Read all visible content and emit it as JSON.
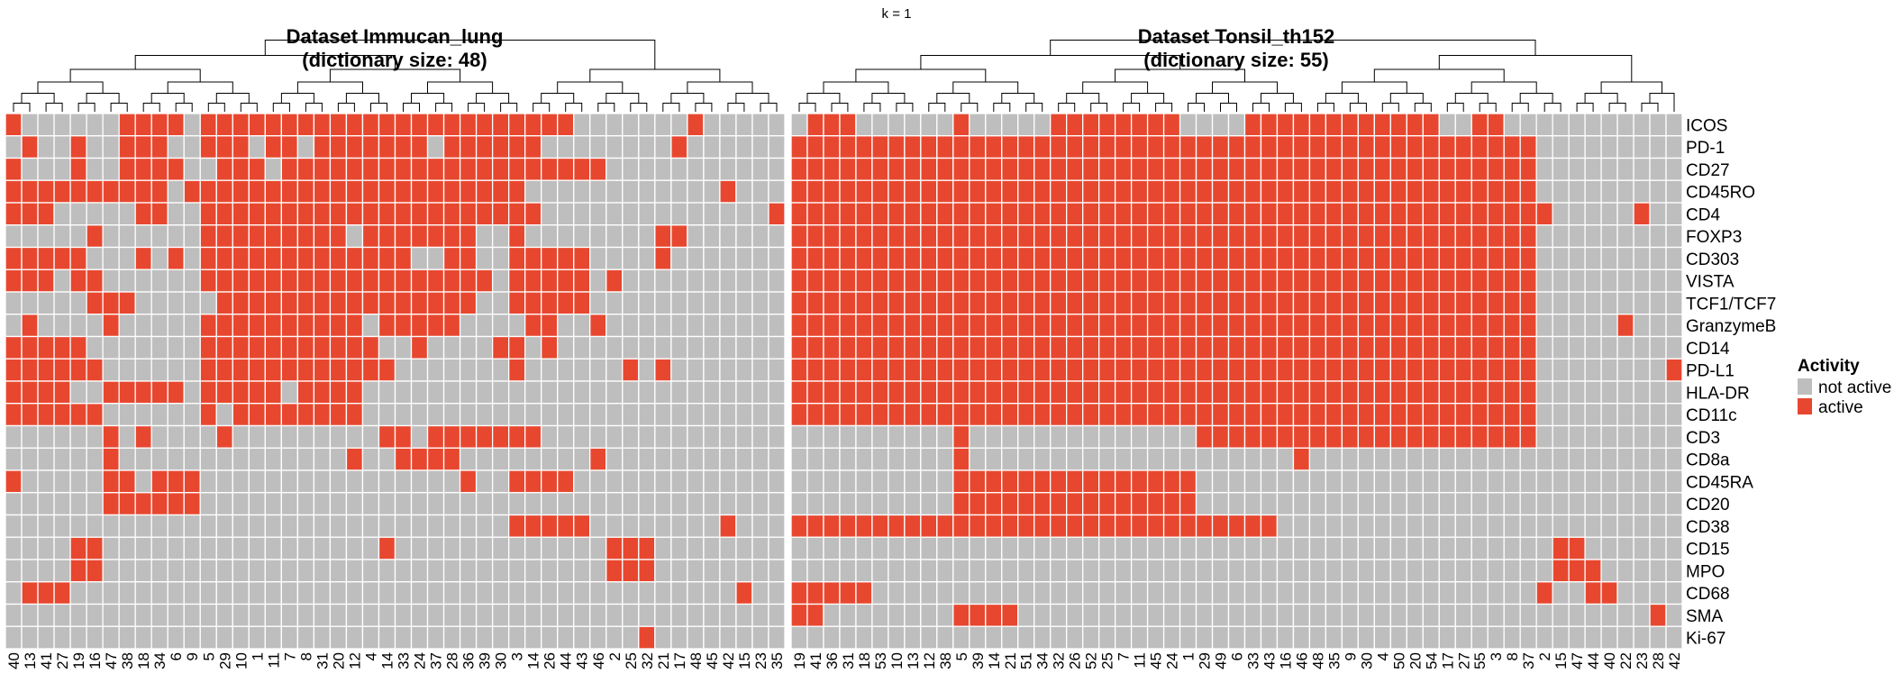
{
  "chart_data": {
    "type": "heatmap",
    "title": "k = 1",
    "colors": {
      "not_active": "#BEBEBE",
      "active": "#E8472F",
      "grid": "#FFFFFF"
    },
    "legend": {
      "title": "Activity",
      "placement": "right",
      "entries": [
        {
          "label": "not active",
          "color": "#BEBEBE"
        },
        {
          "label": "active",
          "color": "#E8472F"
        }
      ]
    },
    "rows": [
      "ICOS",
      "PD-1",
      "CD27",
      "CD45RO",
      "CD4",
      "FOXP3",
      "CD303",
      "VISTA",
      "TCF1/TCF7",
      "GranzymeB",
      "CD14",
      "PD-L1",
      "HLA-DR",
      "CD11c",
      "CD3",
      "CD8a",
      "CD45RA",
      "CD20",
      "CD38",
      "CD15",
      "MPO",
      "CD68",
      "SMA",
      "Ki-67"
    ],
    "panels": [
      {
        "title_line1": "Dataset Immucan_lung",
        "title_line2": "(dictionary size: 48)",
        "columns": [
          "40",
          "13",
          "41",
          "27",
          "19",
          "16",
          "47",
          "38",
          "18",
          "34",
          "6",
          "9",
          "5",
          "29",
          "10",
          "1",
          "11",
          "7",
          "8",
          "31",
          "20",
          "12",
          "4",
          "14",
          "33",
          "24",
          "37",
          "28",
          "36",
          "39",
          "30",
          "3",
          "14",
          "26",
          "44",
          "43",
          "46",
          "2",
          "25",
          "32",
          "21",
          "17",
          "48",
          "45",
          "42",
          "15",
          "23",
          "35"
        ],
        "matrix": [
          "100000011110111111111111111111111110000000100000",
          "010010011100111011011111110111111000000001000000",
          "100010011110011101111111111111111111100000000000",
          "111111111101111111111111111111110000000000001000",
          "111000001100111111111111111111111000000000000001",
          "000001000000111111111011111110010000000011000000",
          "111110001010111111111111100110011111000010000000",
          "111011000000111111111111111111011111010000000000",
          "000001110000011111111111111110011111000000000000",
          "010000100000111111111101111100001100100000000000",
          "111110000000111111111110010000110100000000000000",
          "111111000000111111111111000000010000001010000000",
          "111100111110111110111100000000000000000000000000",
          "111111000000101111111100000000000000000000000000",
          "000000101000010000000001101111111000000000000000",
          "000000100000000000000100111100000000100000000000",
          "100000110111000000000000000010011110000000000000",
          "000000111111000000000000000000000000000000000000",
          "000000000000000000000000000000011111000000001000",
          "000011000000000000000001000000000000011100000000",
          "000011000000000000000000000000000000011100000000",
          "011100000000000000000000000000000000000000000100",
          "000000000000000000000000000000000000000000000000",
          "000000000000000000000000000000000000000100000000"
        ]
      },
      {
        "title_line1": "Dataset Tonsil_th152",
        "title_line2": "(dictionary size: 55)",
        "columns": [
          "19",
          "41",
          "36",
          "31",
          "18",
          "53",
          "10",
          "13",
          "12",
          "38",
          "5",
          "39",
          "14",
          "21",
          "51",
          "34",
          "32",
          "26",
          "52",
          "25",
          "7",
          "11",
          "45",
          "24",
          "1",
          "29",
          "49",
          "6",
          "33",
          "43",
          "16",
          "46",
          "48",
          "35",
          "9",
          "30",
          "4",
          "50",
          "20",
          "54",
          "17",
          "27",
          "55",
          "3",
          "8",
          "37",
          "2",
          "15",
          "47",
          "44",
          "40",
          "22",
          "23",
          "28",
          "42"
        ],
        "matrix": [
          "0111000000100000111111110000111111111111001100000000000",
          "1111111111111111111111111111111111111111111111000000000",
          "1111111111111111111111111111111111111111111111000000000",
          "1111111111111111111111111111111111111111111111000000000",
          "1111111111111111111111111111111111111111111111100000100",
          "1111111111111111111111111111111111111111111111000000000",
          "1111111111111111111111111111111111111111111111000000000",
          "1111111111111111111111111111111111111111111111000000000",
          "1111111111111111111111111111111111111111111111000000000",
          "1111111111111111111111111111111111111111111111000001000",
          "1111111111111111111111111111111111111111111111000000000",
          "1111111111111111111111111111111111111111111111000000001",
          "1111111111111111111111111111111111111111111111000000000",
          "1111111111111111111111111111111111111111111111000000000",
          "0000000000100000000000000111111111111111111111000000000",
          "0000000000100000000000000000000100000000000000000000000",
          "0000000000111111111111111000000000000000000000000000000",
          "0000000000111111111111111000000000000000000000000000000",
          "1111111111111111111111111111110000000000000000000000000",
          "0000000000000000000000000000000000000000000000011000000",
          "0000000000000000000000000000000000000000000000011100000",
          "1111100000000000000000000000000000000000000000100110000",
          "1100000000111100000000000000000000000000000000000000010",
          "0000000000000000000000000000000000000000000000000000000"
        ]
      }
    ]
  }
}
